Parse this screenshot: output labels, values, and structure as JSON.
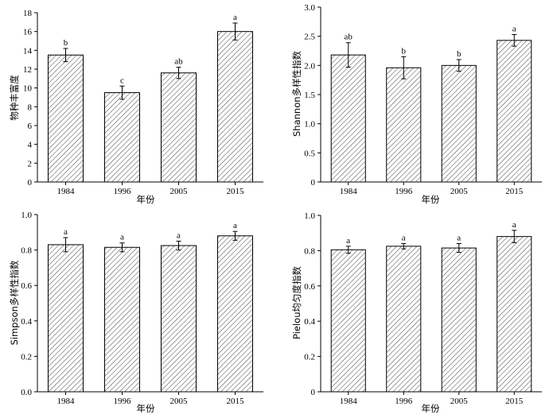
{
  "chart_data": [
    {
      "type": "bar",
      "categories": [
        "1984",
        "1996",
        "2005",
        "2015"
      ],
      "values": [
        13.5,
        9.5,
        11.6,
        16.0
      ],
      "errors": [
        0.7,
        0.7,
        0.6,
        0.9
      ],
      "significance": [
        "b",
        "c",
        "ab",
        "a"
      ],
      "xlabel": "年份",
      "ylabel": "物种丰富度",
      "ylim": [
        0,
        18
      ],
      "yticks": [
        0,
        2,
        4,
        6,
        8,
        10,
        12,
        14,
        16,
        18
      ],
      "ytick_labels": [
        "0",
        "2",
        "4",
        "6",
        "8",
        "10",
        "12",
        "14",
        "16",
        "18"
      ]
    },
    {
      "type": "bar",
      "categories": [
        "1984",
        "1996",
        "2005",
        "2015"
      ],
      "values": [
        2.18,
        1.96,
        2.0,
        2.43
      ],
      "errors": [
        0.21,
        0.19,
        0.1,
        0.1
      ],
      "significance": [
        "ab",
        "b",
        "b",
        "a"
      ],
      "xlabel": "年份",
      "ylabel": "Shannon多样性指数",
      "ylim": [
        0,
        3.0
      ],
      "yticks": [
        0,
        0.5,
        1.0,
        1.5,
        2.0,
        2.5,
        3.0
      ],
      "ytick_labels": [
        "0",
        "0.5",
        "1.0",
        "1.5",
        "2.0",
        "2.5",
        "3.0"
      ]
    },
    {
      "type": "bar",
      "categories": [
        "1984",
        "1996",
        "2005",
        "2015"
      ],
      "values": [
        0.83,
        0.815,
        0.825,
        0.88
      ],
      "errors": [
        0.04,
        0.025,
        0.025,
        0.025
      ],
      "significance": [
        "a",
        "a",
        "a",
        "a"
      ],
      "xlabel": "年份",
      "ylabel": "Simpson多样性指数",
      "ylim": [
        0,
        1.0
      ],
      "yticks": [
        0,
        0.2,
        0.4,
        0.6,
        0.8,
        1.0
      ],
      "ytick_labels": [
        "0.0",
        "0.2",
        "0.4",
        "0.6",
        "0.8",
        "1.0"
      ]
    },
    {
      "type": "bar",
      "categories": [
        "1984",
        "1996",
        "2005",
        "2015"
      ],
      "values": [
        0.805,
        0.825,
        0.815,
        0.88
      ],
      "errors": [
        0.02,
        0.015,
        0.025,
        0.035
      ],
      "significance": [
        "a",
        "a",
        "a",
        "a"
      ],
      "xlabel": "年份",
      "ylabel": "Pielou均匀度指数",
      "ylim": [
        0,
        1.0
      ],
      "yticks": [
        0,
        0.2,
        0.4,
        0.6,
        0.8,
        1.0
      ],
      "ytick_labels": [
        "0",
        "0.2",
        "0.4",
        "0.6",
        "0.8",
        "1.0"
      ]
    }
  ],
  "colors": {
    "axis": "#000000",
    "bar_fill": "#ffffff",
    "bar_hatch": "#444444",
    "bar_edge": "#000000"
  }
}
